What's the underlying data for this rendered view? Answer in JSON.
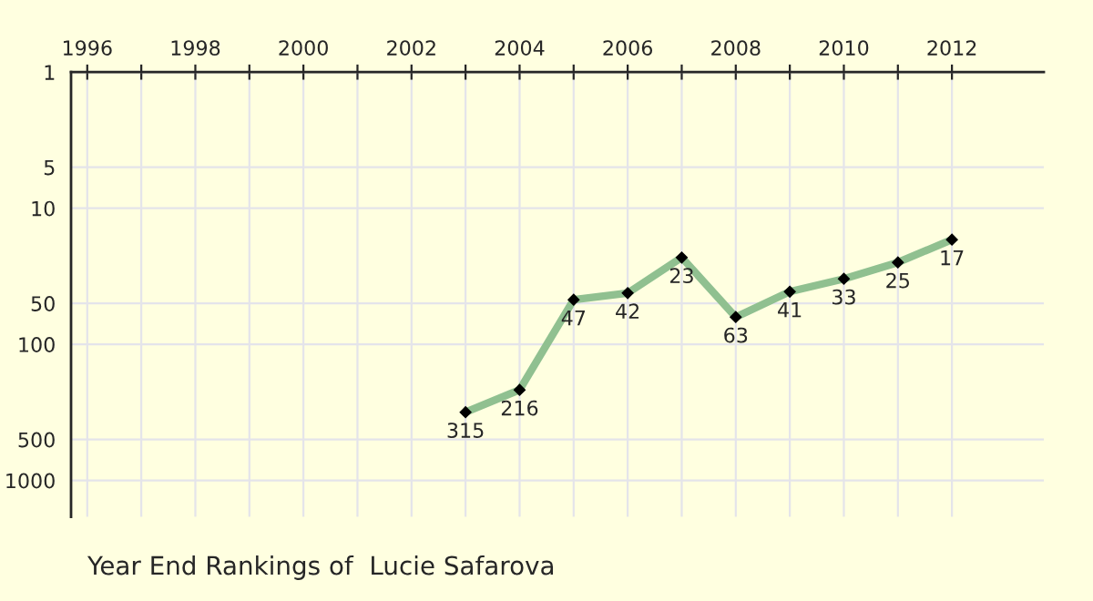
{
  "chart_data": {
    "type": "line",
    "title": "Year End Rankings of  Lucie Safarova",
    "x": [
      2003,
      2004,
      2005,
      2006,
      2007,
      2008,
      2009,
      2010,
      2011,
      2012
    ],
    "series": [
      {
        "color": "#90c090",
        "values": [
          315,
          216,
          47,
          42,
          23,
          63,
          41,
          33,
          25,
          17
        ]
      }
    ],
    "data_labels": true,
    "marker": "diamond",
    "line_style": "solid",
    "log": "y",
    "grid": true,
    "xlim": [
      1995.7,
      2013.7
    ],
    "xticks": [
      1996,
      {
        "value": 1997,
        "label": null
      },
      1998,
      {
        "value": 1999,
        "label": null
      },
      2000,
      {
        "value": 2001,
        "label": null
      },
      2002,
      {
        "value": 2003,
        "label": null
      },
      2004,
      {
        "value": 2005,
        "label": null
      },
      2006,
      {
        "value": 2007,
        "label": null
      },
      2008,
      {
        "value": 2009,
        "label": null
      },
      2010,
      {
        "value": 2011,
        "label": null
      },
      2012
    ],
    "ylim": [
      1850,
      1
    ],
    "yticks": [
      1,
      5,
      10,
      50,
      100,
      500,
      1000
    ]
  }
}
